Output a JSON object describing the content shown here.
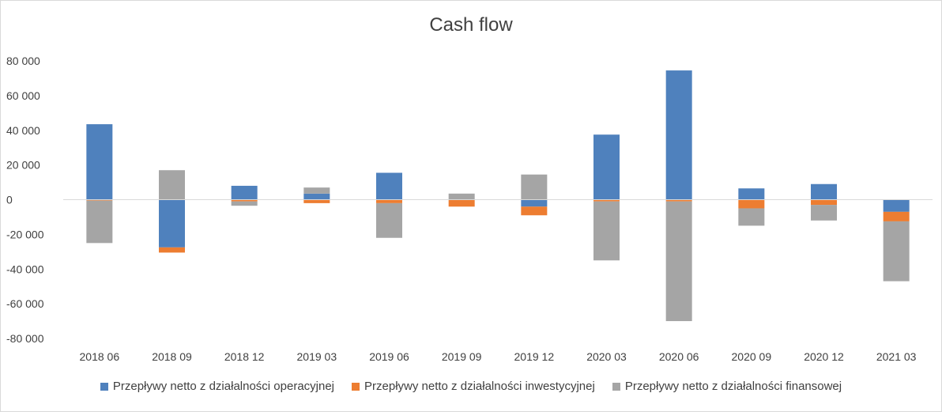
{
  "chart_data": {
    "type": "bar",
    "stacked": true,
    "title": "Cash flow",
    "xlabel": "",
    "ylabel": "",
    "ylim": [
      -80000,
      80000
    ],
    "y_ticks": [
      "80 000",
      "60 000",
      "40 000",
      "20 000",
      "0",
      "-20 000",
      "-40 000",
      "-60 000",
      "-80 000"
    ],
    "y_tick_values": [
      80000,
      60000,
      40000,
      20000,
      0,
      -20000,
      -40000,
      -60000,
      -80000
    ],
    "categories": [
      "2018 06",
      "2018 09",
      "2018 12",
      "2019 03",
      "2019 06",
      "2019 09",
      "2019 12",
      "2020 03",
      "2020 06",
      "2020 09",
      "2020 12",
      "2021 03"
    ],
    "series": [
      {
        "name": "Przepływy netto z działalności operacyjnej",
        "color": "#4f81bd",
        "values": [
          43500,
          -27500,
          8000,
          3500,
          15500,
          0,
          -4000,
          37500,
          74500,
          6500,
          9000,
          -7000
        ]
      },
      {
        "name": "Przepływy netto z działalności inwestycyjnej",
        "color": "#ed7d31",
        "values": [
          -500,
          -3000,
          -1000,
          -2000,
          -2000,
          -4000,
          -5000,
          -1000,
          -1000,
          -5000,
          -3000,
          -5500
        ]
      },
      {
        "name": "Przepływy netto z działalności finansowej",
        "color": "#a5a5a5",
        "values": [
          -24500,
          17000,
          -2500,
          3500,
          -20000,
          3500,
          14500,
          -34000,
          -69000,
          -10000,
          -9000,
          -34500
        ]
      }
    ],
    "grid": false,
    "legend_position": "bottom"
  }
}
